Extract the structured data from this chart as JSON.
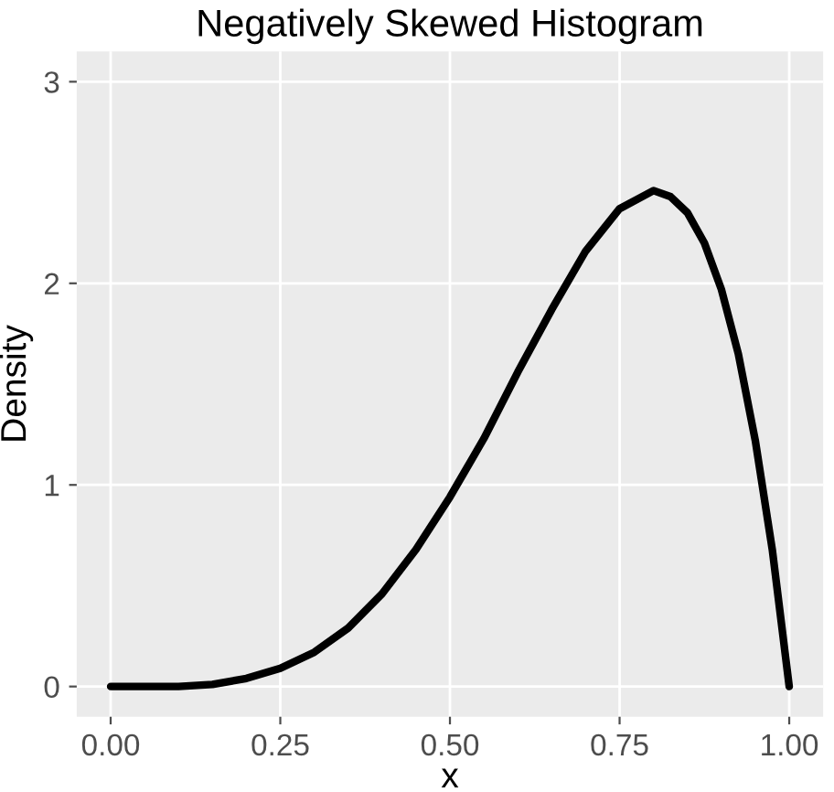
{
  "chart_data": {
    "type": "line",
    "title": "Negatively Skewed Histogram",
    "xlabel": "x",
    "ylabel": "Density",
    "x": [
      0,
      0.05,
      0.1,
      0.15,
      0.2,
      0.25,
      0.3,
      0.35,
      0.4,
      0.45,
      0.5,
      0.55,
      0.6,
      0.65,
      0.7,
      0.75,
      0.8,
      0.825,
      0.85,
      0.875,
      0.9,
      0.925,
      0.95,
      0.975,
      1.0
    ],
    "series": [
      {
        "color": "#000000",
        "values": [
          0,
          0,
          0,
          0.01,
          0.04,
          0.09,
          0.17,
          0.29,
          0.46,
          0.68,
          0.94,
          1.23,
          1.56,
          1.87,
          2.16,
          2.37,
          2.46,
          2.43,
          2.35,
          2.2,
          1.97,
          1.65,
          1.22,
          0.68,
          0
        ]
      }
    ],
    "xlim": [
      -0.05,
      1.05
    ],
    "ylim": [
      -0.15,
      3.15
    ],
    "xticks": [
      {
        "value": 0,
        "label": "0.00"
      },
      {
        "value": 0.25,
        "label": "0.25"
      },
      {
        "value": 0.5,
        "label": "0.50"
      },
      {
        "value": 0.75,
        "label": "0.75"
      },
      {
        "value": 1,
        "label": "1.00"
      }
    ],
    "yticks": [
      0,
      1,
      2,
      3
    ],
    "grid": true,
    "marker": "none",
    "line_style": "solid"
  }
}
